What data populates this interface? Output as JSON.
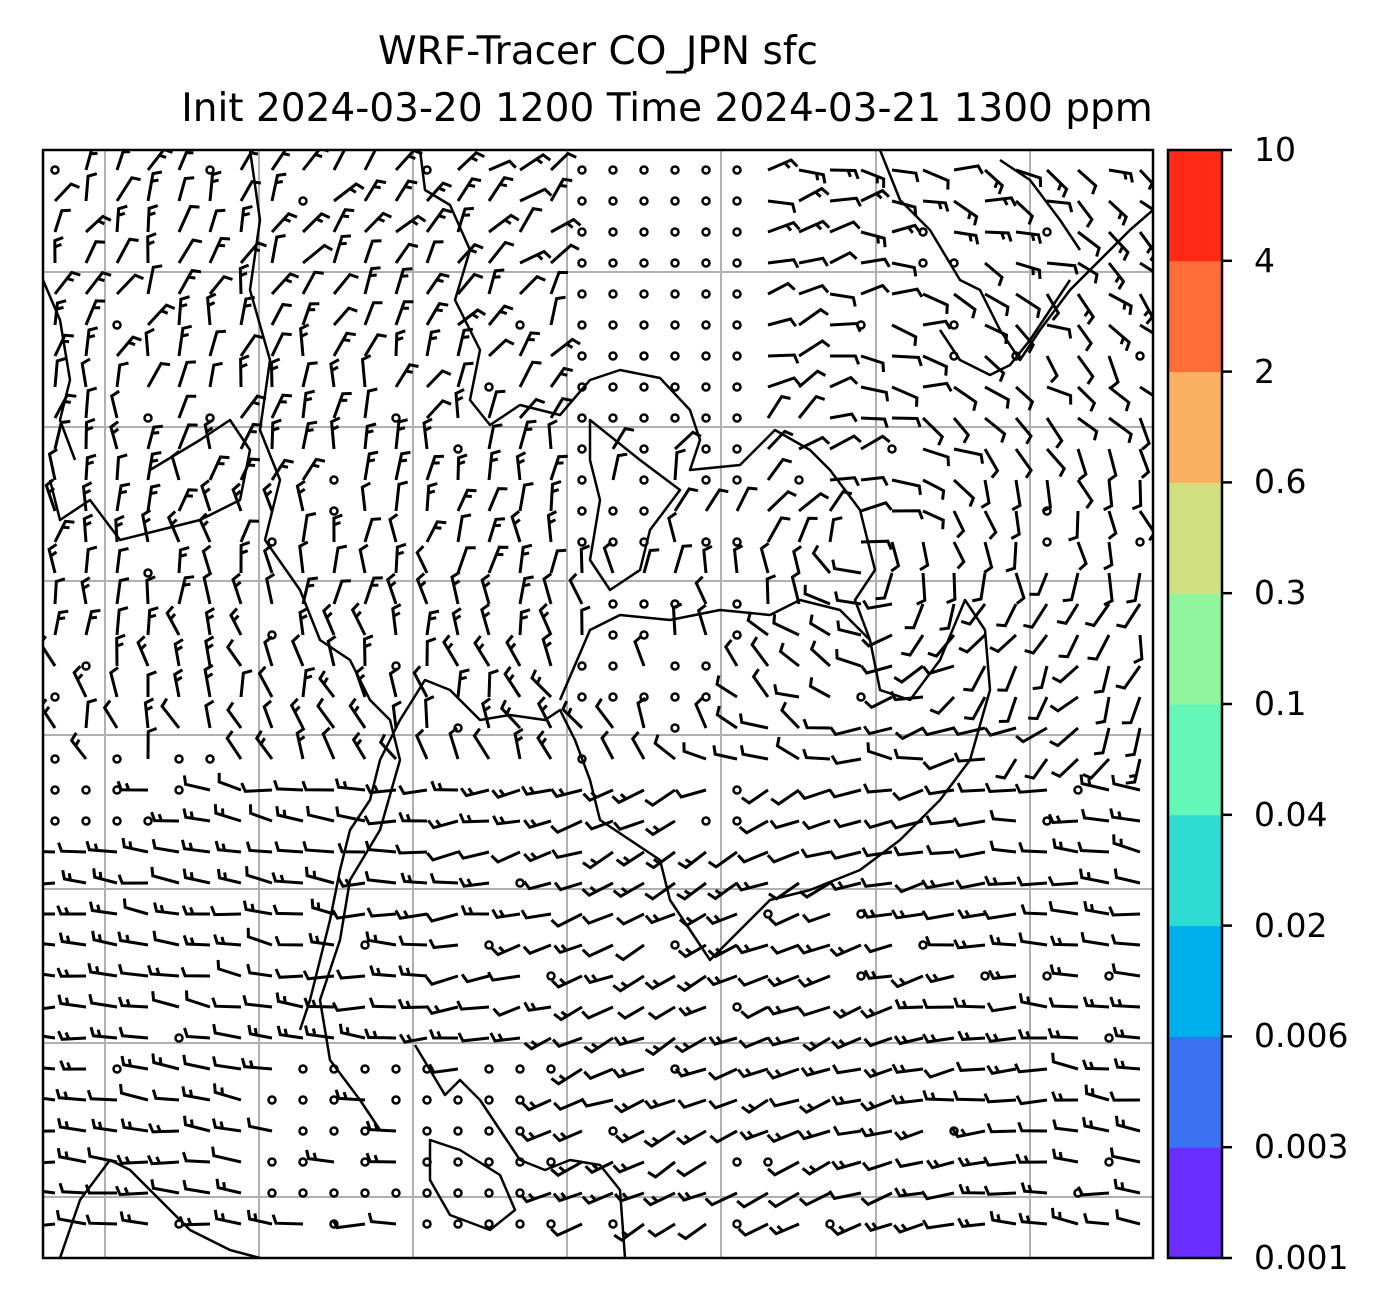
{
  "title": {
    "line1": "WRF-Tracer CO_JPN sfc",
    "line2": "Init 2024-03-20 1200 Time 2024-03-21 1300 ppm"
  },
  "colorbar": {
    "levels": [
      "0.001",
      "0.003",
      "0.006",
      "0.02",
      "0.04",
      "0.1",
      "0.3",
      "0.6",
      "2",
      "4",
      "10"
    ],
    "colors": [
      "#6a2cff",
      "#3a72f2",
      "#00b0ec",
      "#2edcd3",
      "#64f7b7",
      "#90f59c",
      "#d0e080",
      "#fcb062",
      "#ff6e3a",
      "#ff2a16"
    ]
  },
  "map": {
    "gridlines": true,
    "field_fill": "none visible (below 0.001 ppm)",
    "overlay": "surface wind barbs",
    "coastlines": true
  }
}
